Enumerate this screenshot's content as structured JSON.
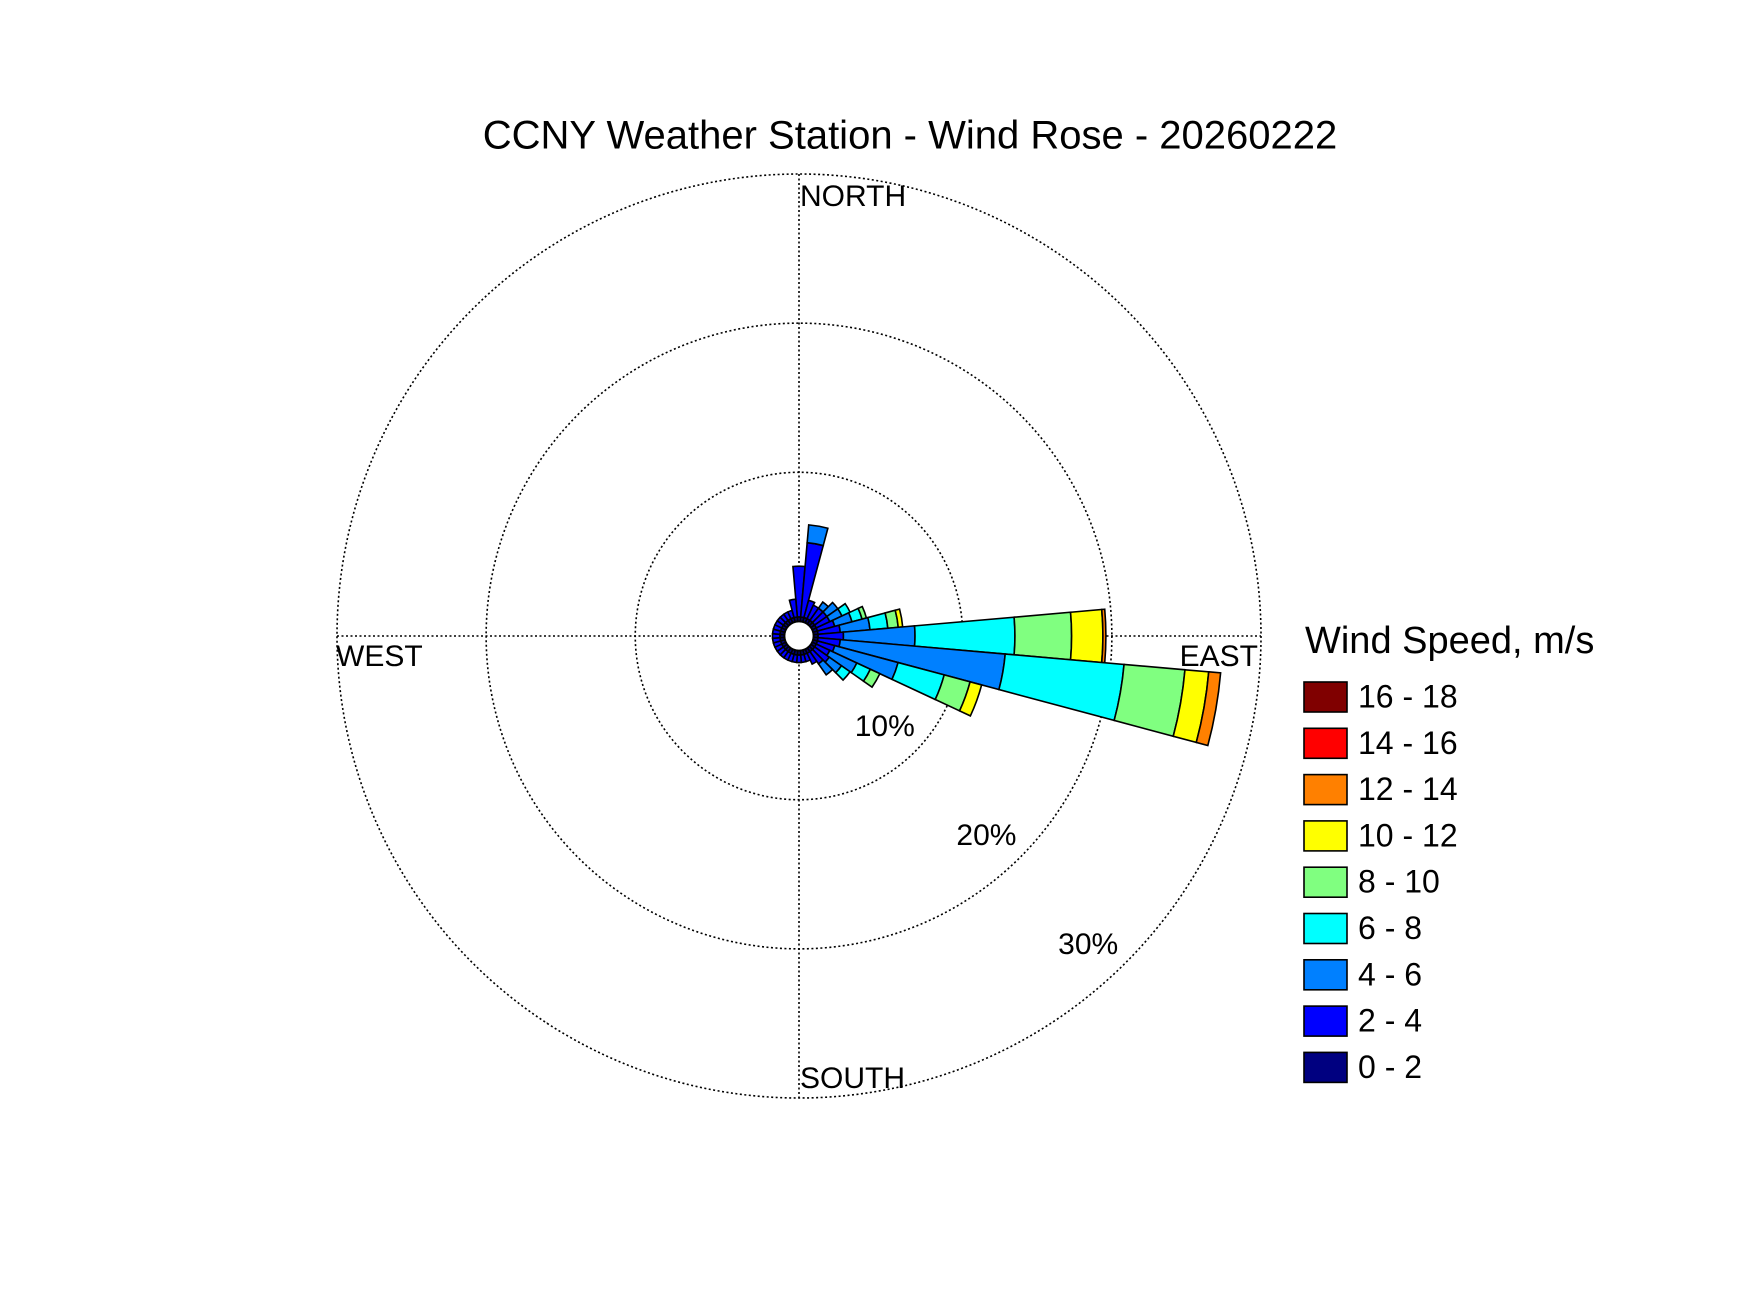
{
  "chart_data": {
    "type": "windrose",
    "title": "CCNY Weather Station - Wind Rose - 20260222",
    "direction_labels": [
      "NORTH",
      "EAST",
      "SOUTH",
      "WEST"
    ],
    "x": [
      0,
      10,
      20,
      30,
      40,
      50,
      60,
      70,
      80,
      90,
      100,
      110,
      120,
      130,
      140,
      150,
      160,
      170,
      180,
      190,
      200,
      210,
      220,
      230,
      240,
      250,
      260,
      270,
      280,
      290,
      300,
      310,
      320,
      330,
      340,
      350
    ],
    "rlim": [
      0,
      30
    ],
    "rticks": [
      {
        "value": 10,
        "label": "10%"
      },
      {
        "value": 20,
        "label": "20%"
      },
      {
        "value": 30,
        "label": "30%"
      }
    ],
    "grid": true,
    "legend_title": "Wind Speed, m/s",
    "series": [
      {
        "name": "0 - 2",
        "color": "#000080",
        "values": [
          0.3,
          0.3,
          0.3,
          0.3,
          0.3,
          0.3,
          0.3,
          0.3,
          0.3,
          0.3,
          0.3,
          0.3,
          0.3,
          0.3,
          0.3,
          0.3,
          0.3,
          0.3,
          0.3,
          0.3,
          0.3,
          0.3,
          0.3,
          0.3,
          0.3,
          0.3,
          0.3,
          0.3,
          0.3,
          0.3,
          0.3,
          0.3,
          0.3,
          0.3,
          0.3,
          0.3
        ]
      },
      {
        "name": "2 - 4",
        "color": "#0000ff",
        "values": [
          3.4,
          5.0,
          1.2,
          1.0,
          1.0,
          1.0,
          1.0,
          1.2,
          1.5,
          1.7,
          1.5,
          1.2,
          1.0,
          1.2,
          1.0,
          0.8,
          0.5,
          0.5,
          0.5,
          0.5,
          0.5,
          0.5,
          0.5,
          0.5,
          0.5,
          0.5,
          0.5,
          0.5,
          0.5,
          0.5,
          0.5,
          0.5,
          0.5,
          0.5,
          0.5,
          1.2
        ]
      },
      {
        "name": "4 - 6",
        "color": "#0080ff",
        "values": [
          0,
          1.2,
          0,
          0,
          0.5,
          0.9,
          0.9,
          1.2,
          2.0,
          4.8,
          11.1,
          4.4,
          2.0,
          1.0,
          0.9,
          0,
          0,
          0,
          0,
          0,
          0,
          0,
          0,
          0,
          0,
          0,
          0,
          0,
          0,
          0,
          0,
          0,
          0,
          0,
          0,
          0
        ]
      },
      {
        "name": "6 - 8",
        "color": "#00ffff",
        "values": [
          0,
          0,
          0,
          0,
          0,
          0,
          0.6,
          0.7,
          1.2,
          6.7,
          8.0,
          3.2,
          1.0,
          0.7,
          0,
          0,
          0,
          0,
          0,
          0,
          0,
          0,
          0,
          0,
          0,
          0,
          0,
          0,
          0,
          0,
          0,
          0,
          0,
          0,
          0,
          0
        ]
      },
      {
        "name": "8 - 10",
        "color": "#80ff80",
        "values": [
          0,
          0,
          0,
          0,
          0,
          0,
          0,
          0.3,
          0.7,
          3.8,
          4.1,
          1.8,
          0.7,
          0,
          0,
          0,
          0,
          0,
          0,
          0,
          0,
          0,
          0,
          0,
          0,
          0,
          0,
          0,
          0,
          0,
          0,
          0,
          0,
          0,
          0,
          0
        ]
      },
      {
        "name": "10 - 12",
        "color": "#ffff00",
        "values": [
          0,
          0,
          0,
          0,
          0,
          0,
          0,
          0,
          0.3,
          2.1,
          1.6,
          0.8,
          0,
          0,
          0,
          0,
          0,
          0,
          0,
          0,
          0,
          0,
          0,
          0,
          0,
          0,
          0,
          0,
          0,
          0,
          0,
          0,
          0,
          0,
          0,
          0
        ]
      },
      {
        "name": "12 - 14",
        "color": "#ff8000",
        "values": [
          0,
          0,
          0,
          0,
          0,
          0,
          0,
          0,
          0,
          0.2,
          0.8,
          0,
          0,
          0,
          0,
          0,
          0,
          0,
          0,
          0,
          0,
          0,
          0,
          0,
          0,
          0,
          0,
          0,
          0,
          0,
          0,
          0,
          0,
          0,
          0,
          0
        ]
      },
      {
        "name": "14 - 16",
        "color": "#ff0000",
        "values": [
          0,
          0,
          0,
          0,
          0,
          0,
          0,
          0,
          0,
          0,
          0,
          0,
          0,
          0,
          0,
          0,
          0,
          0,
          0,
          0,
          0,
          0,
          0,
          0,
          0,
          0,
          0,
          0,
          0,
          0,
          0,
          0,
          0,
          0,
          0,
          0
        ]
      },
      {
        "name": "16 - 18",
        "color": "#800000",
        "values": [
          0,
          0,
          0,
          0,
          0,
          0,
          0,
          0,
          0,
          0,
          0,
          0,
          0,
          0,
          0,
          0,
          0,
          0,
          0,
          0,
          0,
          0,
          0,
          0,
          0,
          0,
          0,
          0,
          0,
          0,
          0,
          0,
          0,
          0,
          0,
          0
        ]
      }
    ]
  }
}
